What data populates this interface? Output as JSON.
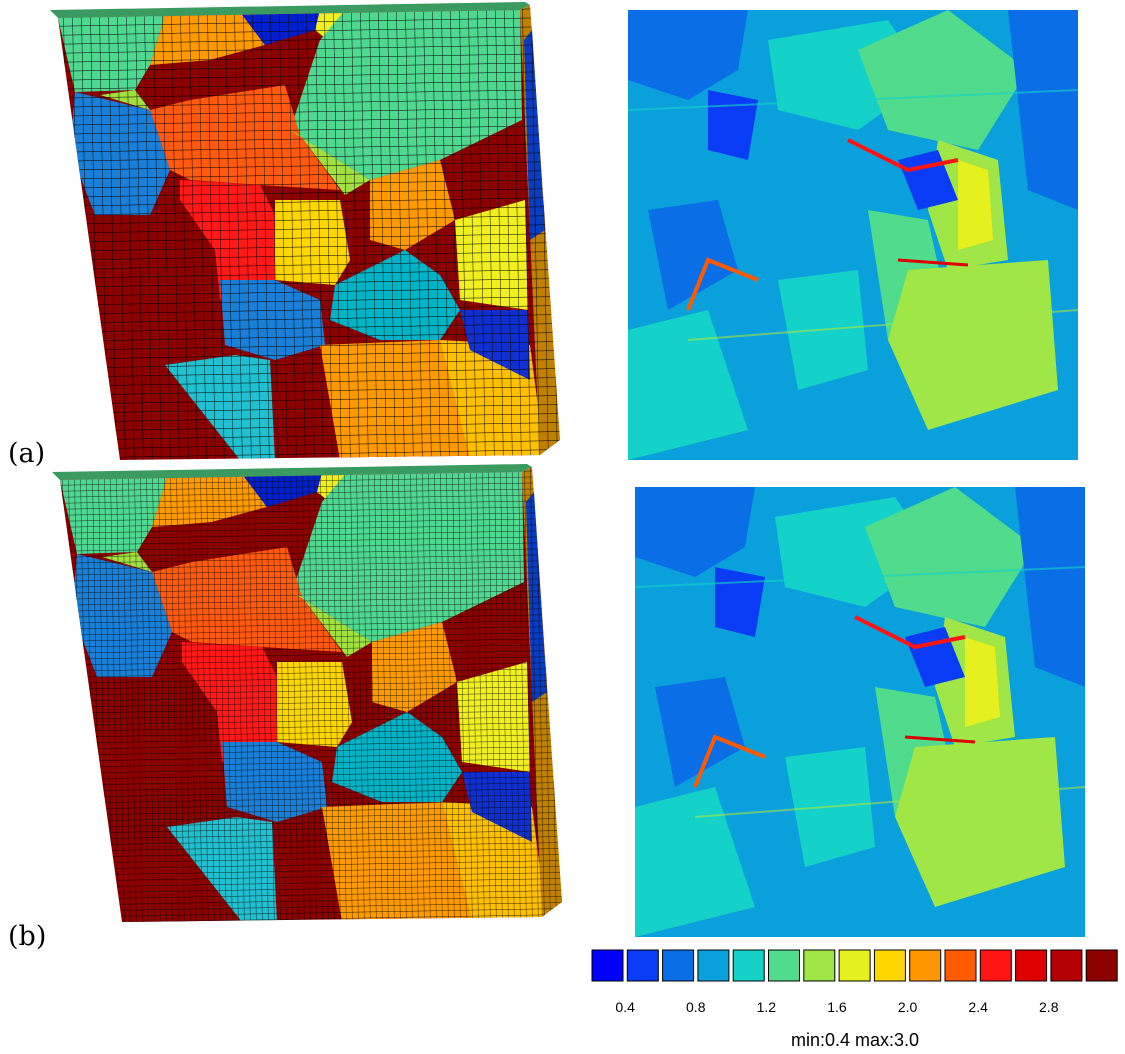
{
  "panels": [
    {
      "label": "(a)"
    },
    {
      "label": "(b)"
    }
  ],
  "colorbar": {
    "colors": [
      "#0000ff",
      "#0a3cf5",
      "#0a6ee6",
      "#0aa0dc",
      "#14d2c8",
      "#50dc8c",
      "#a0e646",
      "#e6f01e",
      "#ffd700",
      "#ff9600",
      "#ff5a00",
      "#ff1414",
      "#dc0000",
      "#b40000",
      "#8c0000"
    ],
    "tick_labels": [
      "0.4",
      "0.8",
      "1.2",
      "1.6",
      "2.0",
      "2.4",
      "2.8"
    ],
    "range_label": "min:0.4 max:3.0"
  }
}
